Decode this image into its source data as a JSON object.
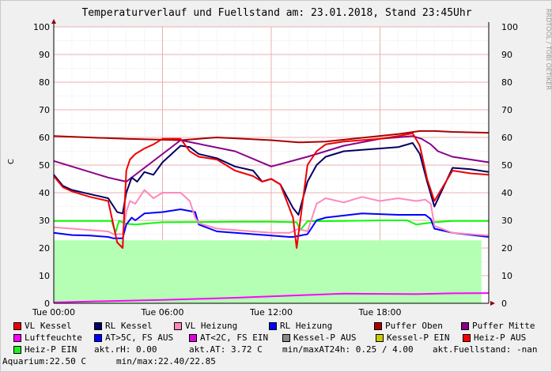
{
  "title": "Temperaturverlauf und Fuellstand am: 23.01.2018, Stand 23:45Uhr",
  "side_text": "RRDTOOL / TOBI OETIKER",
  "chart_data": {
    "type": "line",
    "ylabel": "C",
    "ylim": [
      0,
      100
    ],
    "xlim": [
      0,
      24
    ],
    "yticks": [
      0,
      10,
      20,
      30,
      40,
      50,
      60,
      70,
      80,
      90,
      100
    ],
    "xtick_labels": [
      {
        "x": 0,
        "label": "Tue 00:00"
      },
      {
        "x": 6,
        "label": "Tue 06:00"
      },
      {
        "x": 12,
        "label": "Tue 12:00"
      },
      {
        "x": 18,
        "label": "Tue 18:00"
      }
    ],
    "grid": true,
    "legend_position": "bottom",
    "area": {
      "name": "Fuellstand",
      "color": "#b4ffb4",
      "x": [
        0,
        23.6,
        23.6
      ],
      "values": [
        22.8,
        22.8,
        0
      ]
    },
    "series": [
      {
        "name": "Luftfeuchte",
        "color": "#ff00ff",
        "x": [
          0,
          3,
          6,
          10,
          14,
          16,
          18,
          20,
          22,
          24
        ],
        "values": [
          0.3,
          0.8,
          1.2,
          2.0,
          3.0,
          3.5,
          3.4,
          3.3,
          3.6,
          3.7
        ]
      },
      {
        "name": "Heiz-P EIN",
        "color": "#00ff00",
        "x": [
          0,
          3.2,
          3.4,
          3.6,
          4.0,
          4.5,
          6,
          10,
          12,
          13.4,
          13.6,
          14,
          16,
          18,
          19.5,
          20,
          21,
          22,
          24
        ],
        "values": [
          29.8,
          29.8,
          25.5,
          29.8,
          28.8,
          28.5,
          29.3,
          29.5,
          29.5,
          29.3,
          26.5,
          29.7,
          29.8,
          30.0,
          30.0,
          28.5,
          29.3,
          29.8,
          29.8
        ]
      },
      {
        "name": "Puffer Oben",
        "color": "#aa0000",
        "x": [
          0,
          4,
          7,
          9,
          12,
          13.5,
          15,
          19,
          20.2,
          21,
          22,
          24
        ],
        "values": [
          60.5,
          59.5,
          59.0,
          60.0,
          59.0,
          58.2,
          58.5,
          61.2,
          62.3,
          62.3,
          62.0,
          61.7
        ]
      },
      {
        "name": "Puffer Mitte",
        "color": "#880088",
        "x": [
          0,
          3,
          4,
          7,
          10,
          12,
          14,
          16,
          18,
          19.8,
          20.3,
          20.8,
          21.2,
          22,
          24
        ],
        "values": [
          51.5,
          45.5,
          44,
          59,
          55,
          49.5,
          53,
          57,
          59.5,
          60.5,
          59.5,
          57.5,
          55,
          53,
          51
        ]
      },
      {
        "name": "RL Heizung",
        "color": "#0000ff",
        "x": [
          0,
          1,
          2,
          3,
          3.3,
          3.8,
          4,
          4.3,
          4.5,
          5,
          6,
          7,
          7.8,
          8,
          9,
          10,
          12,
          13,
          13.2,
          14,
          14.5,
          15,
          17,
          19,
          20,
          20.5,
          20.8,
          21,
          22,
          24
        ],
        "values": [
          25.5,
          24.7,
          24.5,
          24.0,
          23.5,
          23.5,
          28.5,
          31,
          30,
          32.5,
          33,
          34,
          33,
          28.5,
          26,
          25.5,
          24.5,
          24,
          24,
          25,
          30,
          31,
          32.5,
          32,
          32,
          32,
          30.5,
          27,
          25.5,
          24
        ]
      },
      {
        "name": "VL Heizung",
        "color": "#ff88bb",
        "x": [
          0,
          1,
          2,
          3,
          3.3,
          3.8,
          4,
          4.2,
          4.5,
          5,
          5.5,
          6,
          7,
          7.5,
          7.8,
          8,
          9,
          10,
          12,
          13,
          13.2,
          13.5,
          14,
          14.5,
          15,
          16,
          17,
          18,
          19,
          20,
          20.5,
          20.8,
          21,
          22,
          24
        ],
        "values": [
          27.5,
          27.0,
          26.5,
          26.0,
          25,
          25,
          33,
          37,
          36,
          41,
          38,
          40,
          40,
          37,
          31,
          29,
          27,
          26.5,
          25.5,
          25.5,
          26,
          27,
          26,
          36,
          38,
          36.5,
          38.5,
          37,
          38,
          37,
          37.5,
          36,
          28,
          25.5,
          24.5
        ]
      },
      {
        "name": "RL Kessel",
        "color": "#000066",
        "x": [
          0,
          0.5,
          1,
          2,
          3,
          3.5,
          3.8,
          4,
          4.3,
          4.6,
          5,
          5.5,
          6,
          7,
          7.5,
          8,
          9,
          10,
          11,
          11.5,
          12,
          12.5,
          13.2,
          13.5,
          14,
          14.5,
          15,
          16,
          17,
          18,
          19,
          19.8,
          20.2,
          20.6,
          21,
          22,
          23,
          24
        ],
        "values": [
          46.5,
          42.5,
          41,
          39.5,
          38,
          33,
          32.5,
          40,
          45.5,
          44,
          47.5,
          46.5,
          51,
          57,
          56.5,
          54,
          52.5,
          49.5,
          48,
          44,
          45,
          43,
          34.5,
          32,
          44,
          50,
          53,
          55,
          55.5,
          56,
          56.5,
          58,
          54,
          44,
          35,
          49,
          48.5,
          47.5
        ]
      },
      {
        "name": "VL Kessel",
        "color": "#ee0000",
        "x": [
          0,
          0.5,
          1,
          2,
          3,
          3.5,
          3.8,
          4,
          4.2,
          4.5,
          5,
          5.5,
          6,
          7,
          7.5,
          8,
          9,
          10,
          11,
          11.5,
          12,
          12.5,
          13.2,
          13.4,
          13.6,
          14,
          14.5,
          15,
          16,
          17,
          18,
          19,
          19.8,
          20.2,
          20.6,
          21,
          22,
          23,
          24
        ],
        "values": [
          46,
          42,
          40.5,
          38.5,
          37,
          22,
          20,
          48,
          52,
          54,
          56,
          57.5,
          59.5,
          59.5,
          55,
          53,
          52,
          48,
          46,
          44,
          45,
          43,
          31,
          20,
          30,
          50,
          55,
          57.5,
          58.5,
          59,
          59.5,
          60.5,
          61.5,
          57,
          45,
          37,
          48,
          47,
          46.5
        ]
      }
    ]
  },
  "legend": {
    "row1": [
      {
        "label": "VL Kessel",
        "color": "#ee0000"
      },
      {
        "label": "RL Kessel",
        "color": "#000066"
      },
      {
        "label": "VL Heizung",
        "color": "#ff88bb"
      },
      {
        "label": "RL Heizung",
        "color": "#0000ff"
      },
      {
        "label": "Puffer Oben",
        "color": "#aa0000"
      },
      {
        "label": "Puffer Mitte",
        "color": "#880088"
      }
    ],
    "row2": [
      {
        "label": "Luftfeuchte",
        "color": "#ff00ff"
      },
      {
        "label": "AT>5C, FS AUS",
        "color": "#0000ff"
      },
      {
        "label": "AT<2C, FS EIN",
        "color": "#dd00dd"
      },
      {
        "label": "Kessel-P AUS",
        "color": "#888888"
      },
      {
        "label": "Kessel-P EIN",
        "color": "#cccc00"
      },
      {
        "label": "Heiz-P AUS",
        "color": "#ff0000"
      }
    ],
    "row3_item": {
      "label": "Heiz-P EIN",
      "color": "#22ee22"
    },
    "row3_info": [
      "akt.rH: 0.00",
      "akt.AT: 3.72 C",
      "min/maxAT24h: 0.25 / 4.00",
      "akt.Fuellstand: -nan"
    ],
    "row4_info": [
      "Aquarium:22.50 C",
      "min/max:22.40/22.85"
    ]
  }
}
